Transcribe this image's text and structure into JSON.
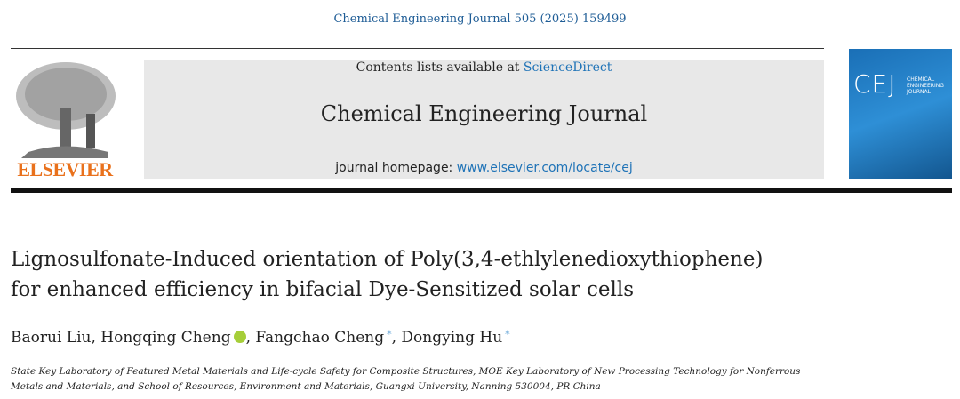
{
  "header": {
    "citation": "Chemical Engineering Journal 505 (2025) 159499",
    "publisher": "ELSEVIER",
    "contents_prefix": "Contents lists available at ",
    "contents_link": "ScienceDirect",
    "journal_title": "Chemical Engineering Journal",
    "homepage_prefix": "journal homepage: ",
    "homepage_link": "www.elsevier.com/locate/cej",
    "cover": {
      "abbreviation": "CEJ",
      "name_lines": [
        "CHEMICAL",
        "ENGINEERING",
        "JOURNAL"
      ]
    }
  },
  "article": {
    "title_lines": [
      "Lignosulfonate-Induced orientation of Poly(3,4-ethlylenedioxythiophene)",
      "for enhanced efficiency in bifacial Dye-Sensitized solar cells"
    ],
    "author_separator": ", ",
    "authors": [
      {
        "name": "Baorui Liu"
      },
      {
        "name": "Hongqing Cheng",
        "orcid": true
      },
      {
        "name": "Fangchao Cheng",
        "mark": "*"
      },
      {
        "name": "Dongying Hu",
        "mark": "*"
      }
    ],
    "affiliation": "State Key Laboratory of Featured Metal Materials and Life-cycle Safety for Composite Structures, MOE Key Laboratory of New Processing Technology for Nonferrous Metals and Materials, and School of Resources, Environment and Materials, Guangxi University, Nanning 530004, PR China"
  }
}
